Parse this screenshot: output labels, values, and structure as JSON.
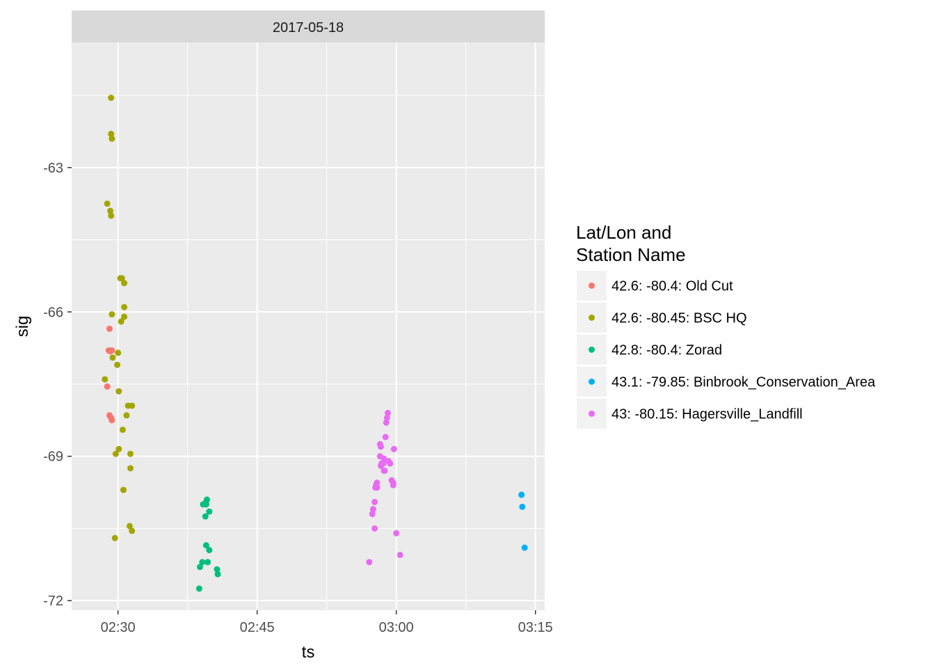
{
  "chart_data": {
    "type": "scatter",
    "facet_label": "2017-05-18",
    "xlabel": "ts",
    "ylabel": "sig",
    "x_format": "HH:MM",
    "xlim": [
      "02:25:00",
      "03:16:00"
    ],
    "x_ticks": [
      "02:30",
      "02:45",
      "03:00",
      "03:15"
    ],
    "ylim": [
      -72.2,
      -60.4
    ],
    "y_ticks": [
      -63,
      -66,
      -69,
      -72
    ],
    "grid": true,
    "legend": {
      "title_lines": [
        "Lat/Lon and",
        "Station Name"
      ],
      "position": "right"
    },
    "series": [
      {
        "name": "42.6: -80.4: Old Cut",
        "color": "#F8766D",
        "points": [
          [
            "02:29:05",
            -66.35
          ],
          [
            "02:29:00",
            -66.8
          ],
          [
            "02:29:20",
            -66.8
          ],
          [
            "02:29:10",
            -66.82
          ],
          [
            "02:28:50",
            -67.55
          ],
          [
            "02:29:05",
            -68.15
          ],
          [
            "02:29:15",
            -68.2
          ],
          [
            "02:29:20",
            -68.25
          ]
        ]
      },
      {
        "name": "42.6: -80.45: BSC HQ",
        "color": "#A3A500",
        "points": [
          [
            "02:29:15",
            -61.55
          ],
          [
            "02:29:15",
            -62.3
          ],
          [
            "02:29:20",
            -62.4
          ],
          [
            "02:28:50",
            -63.75
          ],
          [
            "02:29:10",
            -63.9
          ],
          [
            "02:29:15",
            -64.0
          ],
          [
            "02:30:15",
            -65.3
          ],
          [
            "02:30:25",
            -65.3
          ],
          [
            "02:30:40",
            -65.4
          ],
          [
            "02:29:20",
            -66.05
          ],
          [
            "02:30:40",
            -65.9
          ],
          [
            "02:30:40",
            -66.1
          ],
          [
            "02:30:20",
            -66.2
          ],
          [
            "02:30:00",
            -66.85
          ],
          [
            "02:29:25",
            -66.95
          ],
          [
            "02:29:55",
            -67.1
          ],
          [
            "02:28:35",
            -67.4
          ],
          [
            "02:30:05",
            -67.65
          ],
          [
            "02:31:05",
            -67.95
          ],
          [
            "02:31:30",
            -67.95
          ],
          [
            "02:30:55",
            -68.15
          ],
          [
            "02:30:30",
            -68.45
          ],
          [
            "02:30:05",
            -68.85
          ],
          [
            "02:29:45",
            -68.95
          ],
          [
            "02:31:20",
            -68.95
          ],
          [
            "02:31:20",
            -69.25
          ],
          [
            "02:30:35",
            -69.7
          ],
          [
            "02:31:15",
            -70.45
          ],
          [
            "02:31:30",
            -70.55
          ],
          [
            "02:29:40",
            -70.7
          ]
        ]
      },
      {
        "name": "42.8: -80.4: Zorad",
        "color": "#00BF7D",
        "points": [
          [
            "02:39:35",
            -69.9
          ],
          [
            "02:39:30",
            -69.95
          ],
          [
            "02:39:10",
            -70.0
          ],
          [
            "02:39:30",
            -70.0
          ],
          [
            "02:39:50",
            -70.15
          ],
          [
            "02:39:25",
            -70.25
          ],
          [
            "02:39:30",
            -70.85
          ],
          [
            "02:39:50",
            -70.95
          ],
          [
            "02:39:05",
            -71.2
          ],
          [
            "02:39:40",
            -71.2
          ],
          [
            "02:40:40",
            -71.35
          ],
          [
            "02:38:50",
            -71.3
          ],
          [
            "02:40:45",
            -71.45
          ],
          [
            "02:38:45",
            -71.75
          ]
        ]
      },
      {
        "name": "43.1: -79.85: Binbrook_Conservation_Area",
        "color": "#00B0F6",
        "points": [
          [
            "03:13:30",
            -69.8
          ],
          [
            "03:13:35",
            -70.05
          ],
          [
            "03:13:50",
            -70.9
          ]
        ]
      },
      {
        "name": "43: -80.15: Hagersville_Landfill",
        "color": "#E76BF3",
        "points": [
          [
            "02:59:05",
            -68.1
          ],
          [
            "02:59:00",
            -68.2
          ],
          [
            "02:58:55",
            -68.3
          ],
          [
            "02:58:50",
            -68.6
          ],
          [
            "02:58:15",
            -68.75
          ],
          [
            "02:58:20",
            -68.8
          ],
          [
            "02:59:45",
            -68.85
          ],
          [
            "02:58:15",
            -69.0
          ],
          [
            "02:58:40",
            -69.05
          ],
          [
            "02:59:10",
            -69.1
          ],
          [
            "02:58:25",
            -69.15
          ],
          [
            "02:58:35",
            -69.15
          ],
          [
            "02:59:20",
            -69.15
          ],
          [
            "02:58:20",
            -69.2
          ],
          [
            "02:58:40",
            -69.3
          ],
          [
            "02:58:45",
            -69.3
          ],
          [
            "02:59:30",
            -69.5
          ],
          [
            "02:59:40",
            -69.55
          ],
          [
            "02:57:55",
            -69.55
          ],
          [
            "02:57:50",
            -69.6
          ],
          [
            "02:59:40",
            -69.6
          ],
          [
            "02:57:55",
            -69.65
          ],
          [
            "02:57:45",
            -69.65
          ],
          [
            "02:57:40",
            -69.95
          ],
          [
            "02:57:30",
            -70.1
          ],
          [
            "02:57:25",
            -70.2
          ],
          [
            "02:57:40",
            -70.5
          ],
          [
            "03:00:00",
            -70.6
          ],
          [
            "02:57:05",
            -71.2
          ],
          [
            "03:00:25",
            -71.05
          ]
        ]
      }
    ]
  }
}
